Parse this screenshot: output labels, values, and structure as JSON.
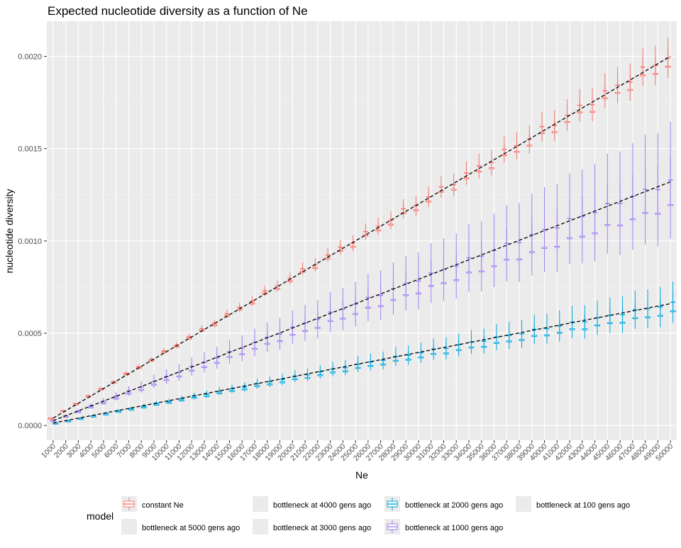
{
  "chart_data": {
    "type": "boxplot",
    "title": "Expected nucleotide diversity as a function of Ne",
    "xlabel": "Ne",
    "ylabel": "nucleotide diversity",
    "ylim": [
      -8e-05,
      0.00219
    ],
    "y_ticks": [
      "0.0000",
      "0.0005",
      "0.0010",
      "0.0015",
      "0.0020"
    ],
    "y_tick_values": [
      0,
      0.0005,
      0.001,
      0.0015,
      0.002
    ],
    "categories": [
      "1000",
      "2000",
      "3000",
      "4000",
      "5000",
      "6000",
      "7000",
      "8000",
      "9000",
      "10000",
      "11000",
      "12000",
      "13000",
      "14000",
      "15000",
      "16000",
      "17000",
      "18000",
      "19000",
      "20000",
      "21000",
      "22000",
      "23000",
      "24000",
      "25000",
      "26000",
      "27000",
      "28000",
      "29000",
      "30000",
      "31000",
      "32000",
      "33000",
      "34000",
      "35000",
      "36000",
      "37000",
      "38000",
      "39000",
      "40000",
      "41000",
      "42000",
      "43000",
      "44000",
      "45000",
      "46000",
      "47000",
      "48000",
      "49000",
      "50000"
    ],
    "grid": true,
    "legend": {
      "title": "model",
      "position": "bottom",
      "entries": [
        {
          "label": "constant Ne",
          "color": "#F8766D",
          "shown": true
        },
        {
          "label": "bottleneck at 4000 gens ago",
          "color": "",
          "shown": false
        },
        {
          "label": "bottleneck at 2000 gens ago",
          "color": "#00A9E0",
          "shown": true
        },
        {
          "label": "bottleneck at 100 gens ago",
          "color": "",
          "shown": false
        },
        {
          "label": "bottleneck at 5000 gens ago",
          "color": "",
          "shown": false
        },
        {
          "label": "bottleneck at 3000 gens ago",
          "color": "",
          "shown": false
        },
        {
          "label": "bottleneck at 1000 gens ago",
          "color": "#9F7FF2",
          "shown": true
        }
      ]
    },
    "expected_lines": [
      {
        "x": [
          1000,
          50000
        ],
        "y": [
          4e-05,
          0.002
        ]
      },
      {
        "x": [
          1000,
          50000
        ],
        "y": [
          2.64e-05,
          0.00132
        ]
      },
      {
        "x": [
          1000,
          50000
        ],
        "y": [
          1.32e-05,
          0.00066
        ]
      }
    ],
    "series": [
      {
        "name": "constant Ne",
        "color": "#F8766D",
        "center_factor": 4e-08,
        "box_half": 0.022,
        "whisker_half": 0.055
      },
      {
        "name": "bottleneck at 1000 gens ago",
        "color": "#9F7FF2",
        "center_factor": 2.64e-08,
        "box_half": 0.1,
        "whisker_half": 0.24
      },
      {
        "name": "bottleneck at 2000 gens ago",
        "color": "#00A9E0",
        "center_factor": 1.32e-08,
        "box_half": 0.07,
        "whisker_half": 0.17
      }
    ]
  }
}
